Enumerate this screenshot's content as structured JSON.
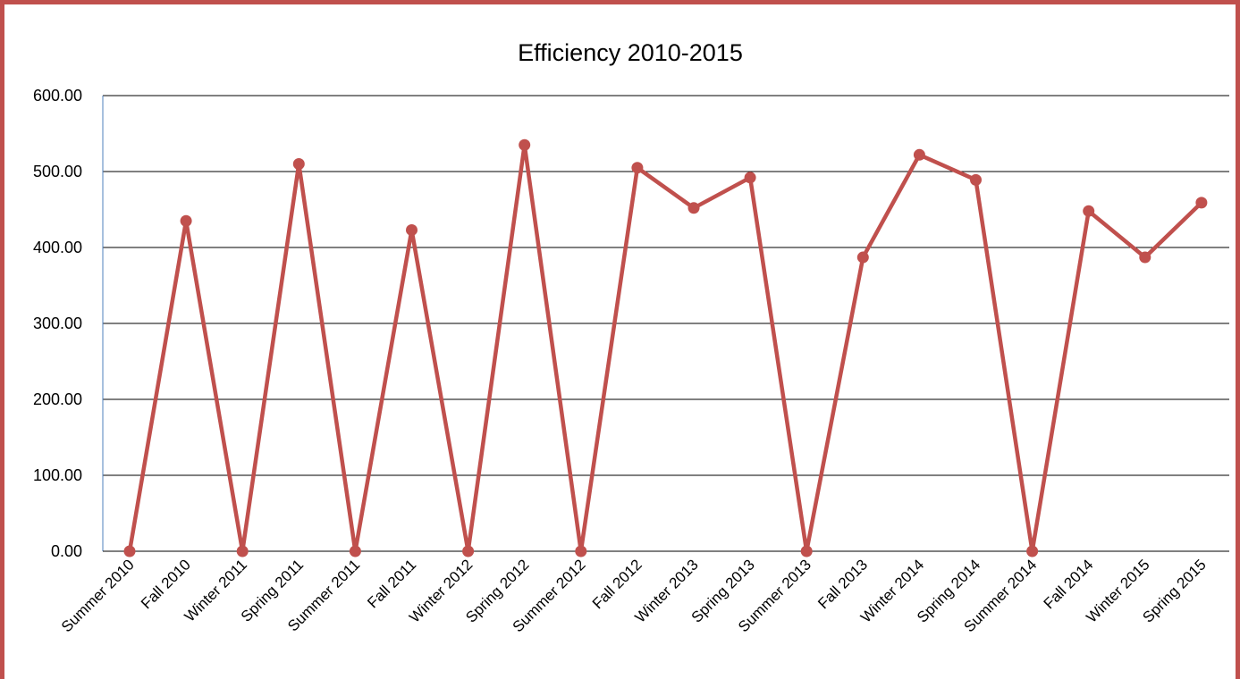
{
  "chart_data": {
    "type": "line",
    "title": "Efficiency 2010-2015",
    "xlabel": "",
    "ylabel": "",
    "ylim": [
      0,
      600
    ],
    "y_ticks": [
      "0.00",
      "100.00",
      "200.00",
      "300.00",
      "400.00",
      "500.00",
      "600.00"
    ],
    "grid": "horizontal",
    "legend": "none",
    "categories": [
      "Summer 2010",
      "Fall 2010",
      "Winter 2011",
      "Spring 2011",
      "Summer 2011",
      "Fall 2011",
      "Winter 2012",
      "Spring 2012",
      "Summer 2012",
      "Fall 2012",
      "Winter 2013",
      "Spring 2013",
      "Summer 2013",
      "Fall 2013",
      "Winter 2014",
      "Spring 2014",
      "Summer 2014",
      "Fall 2014",
      "Winter 2015",
      "Spring 2015"
    ],
    "series": [
      {
        "color": "#c0504d",
        "values": [
          0,
          435,
          0,
          510,
          0,
          423,
          0,
          535,
          0,
          505,
          452,
          492,
          0,
          387,
          522,
          489,
          0,
          448,
          387,
          459
        ]
      }
    ]
  }
}
